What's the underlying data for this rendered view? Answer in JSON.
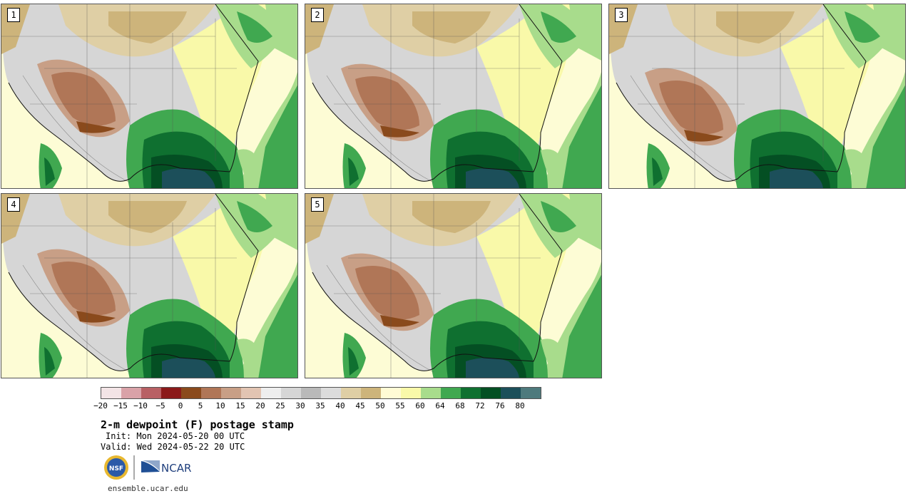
{
  "panels": [
    {
      "label": "1"
    },
    {
      "label": "2"
    },
    {
      "label": "3"
    },
    {
      "label": "4"
    },
    {
      "label": "5"
    }
  ],
  "colorbar": {
    "colors": [
      "#f3e4e6",
      "#d9a2a8",
      "#b86064",
      "#8b1a1a",
      "#8a4a1c",
      "#b07657",
      "#c89f86",
      "#e2c4b2",
      "#eeeeee",
      "#d6d6d6",
      "#b9b9b9",
      "#dcdcdc",
      "#dfcfa5",
      "#cdb47b",
      "#fffbd5",
      "#f9f9a9",
      "#a8dc8c",
      "#40a850",
      "#0f7030",
      "#044f23",
      "#1c4f5a",
      "#4e7a7d"
    ],
    "tick_labels": [
      "−20",
      "−15",
      "−10",
      "−5",
      "0",
      "5",
      "10",
      "15",
      "20",
      "25",
      "30",
      "35",
      "40",
      "45",
      "50",
      "55",
      "60",
      "64",
      "68",
      "72",
      "76",
      "80"
    ]
  },
  "title": "2-m dewpoint (F) postage stamp",
  "init": "Init: Mon 2024-05-20 00 UTC",
  "valid": "Valid: Wed 2024-05-22 20 UTC",
  "logos": {
    "nsf": "NSF",
    "ncar": "NCAR"
  },
  "site": "ensemble.ucar.edu"
}
